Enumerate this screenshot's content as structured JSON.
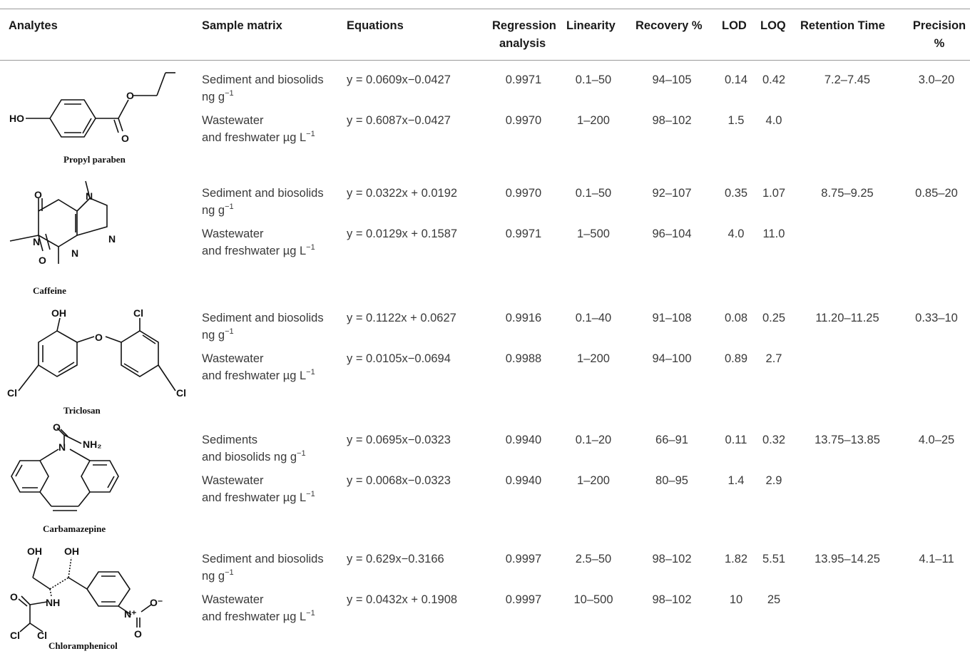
{
  "headers": {
    "analytes": "Analytes",
    "sample_matrix": "Sample matrix",
    "equations": "Equations",
    "regression_1": "Regression",
    "regression_2": "analysis",
    "linearity": "Linearity",
    "recovery": "Recovery %",
    "lod": "LOD",
    "loq": "LOQ",
    "retention_time": "Retention Time",
    "precision_1": "Precision",
    "precision_2": "%"
  },
  "rows": [
    {
      "molecule_name": "Propyl paraben",
      "retention_time": "7.2–7.45",
      "precision": "3.0–20",
      "entries": [
        {
          "matrix_1": "Sediment and biosolids",
          "matrix_2": "ng g",
          "unit_sup": "−1",
          "equation": "y = 0.0609x−0.0427",
          "regression": "0.9971",
          "linearity": "0.1–50",
          "recovery": "94–105",
          "lod": "0.14",
          "loq": "0.42"
        },
        {
          "matrix_1": "Wastewater",
          "matrix_2": "and freshwater µg L",
          "unit_sup": "−1",
          "equation": "y = 0.6087x−0.0427",
          "regression": "0.9970",
          "linearity": "1–200",
          "recovery": "98–102",
          "lod": "1.5",
          "loq": "4.0"
        }
      ]
    },
    {
      "molecule_name": "Caffeine",
      "retention_time": "8.75–9.25",
      "precision": "0.85–20",
      "entries": [
        {
          "matrix_1": "Sediment and biosolids",
          "matrix_2": "ng g",
          "unit_sup": "−1",
          "equation": "y = 0.0322x + 0.0192",
          "regression": "0.9970",
          "linearity": "0.1–50",
          "recovery": "92–107",
          "lod": "0.35",
          "loq": "1.07"
        },
        {
          "matrix_1": "Wastewater",
          "matrix_2": "and freshwater µg L",
          "unit_sup": "−1",
          "equation": "y = 0.0129x + 0.1587",
          "regression": "0.9971",
          "linearity": "1–500",
          "recovery": "96–104",
          "lod": "4.0",
          "loq": "11.0"
        }
      ]
    },
    {
      "molecule_name": "Triclosan",
      "retention_time": "11.20–11.25",
      "precision": "0.33–10",
      "entries": [
        {
          "matrix_1": "Sediment and biosolids",
          "matrix_2": "ng g",
          "unit_sup": "−1",
          "equation": "y = 0.1122x + 0.0627",
          "regression": "0.9916",
          "linearity": "0.1–40",
          "recovery": "91–108",
          "lod": "0.08",
          "loq": "0.25"
        },
        {
          "matrix_1": "Wastewater",
          "matrix_2": "and freshwater µg L",
          "unit_sup": "−1",
          "equation": "y = 0.0105x−0.0694",
          "regression": "0.9988",
          "linearity": "1–200",
          "recovery": "94–100",
          "lod": "0.89",
          "loq": "2.7"
        }
      ]
    },
    {
      "molecule_name": "Carbamazepine",
      "retention_time": "13.75–13.85",
      "precision": "4.0–25",
      "entries": [
        {
          "matrix_1": "Sediments",
          "matrix_2": "and biosolids ng g",
          "unit_sup": "−1",
          "equation": "y = 0.0695x−0.0323",
          "regression": "0.9940",
          "linearity": "0.1–20",
          "recovery": "66–91",
          "lod": "0.11",
          "loq": "0.32"
        },
        {
          "matrix_1": "Wastewater",
          "matrix_2": "and freshwater µg L",
          "unit_sup": "−1",
          "equation": "y = 0.0068x−0.0323",
          "regression": "0.9940",
          "linearity": "1–200",
          "recovery": "80–95",
          "lod": "1.4",
          "loq": "2.9"
        }
      ]
    },
    {
      "molecule_name": "Chloramphenicol",
      "retention_time": "13.95–14.25",
      "precision": "4.1–11",
      "entries": [
        {
          "matrix_1": "Sediment and biosolids",
          "matrix_2": "ng g",
          "unit_sup": "−1",
          "equation": "y = 0.629x−0.3166",
          "regression": "0.9997",
          "linearity": "2.5–50",
          "recovery": "98–102",
          "lod": "1.82",
          "loq": "5.51"
        },
        {
          "matrix_1": "Wastewater",
          "matrix_2": "and freshwater µg L",
          "unit_sup": "−1",
          "equation": "y = 0.0432x + 0.1908",
          "regression": "0.9997",
          "linearity": "10–500",
          "recovery": "98–102",
          "lod": "10",
          "loq": "25"
        }
      ]
    }
  ],
  "atom_labels": {
    "ho": "HO",
    "o": "O",
    "oh": "OH",
    "cl": "Cl",
    "n": "N",
    "nh": "NH",
    "nh2": "NH₂",
    "n_plus": "N⁺",
    "o_minus": "O⁻"
  }
}
